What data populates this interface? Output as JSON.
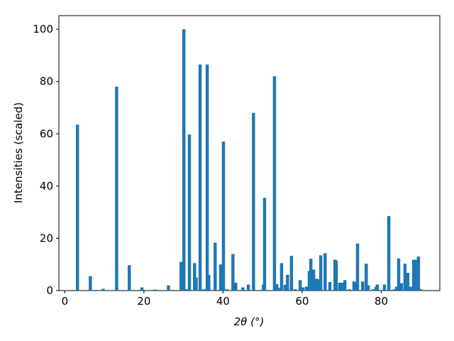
{
  "chart_data": {
    "type": "bar",
    "xlabel": "2θ (°)",
    "ylabel": "Intensities (scaled)",
    "color": "#1f77b4",
    "x": [
      3.2,
      6.45,
      9.7,
      13.1,
      16.3,
      19.5,
      22.8,
      26.2,
      29.4,
      30.1,
      30.8,
      31.5,
      32.8,
      33.2,
      34.2,
      35.1,
      36.0,
      36.4,
      38.0,
      39.4,
      40.1,
      40.9,
      42.5,
      43.2,
      45.0,
      46.4,
      47.7,
      50.2,
      50.5,
      53.0,
      53.6,
      54.1,
      54.8,
      55.7,
      56.3,
      57.3,
      58.2,
      59.5,
      60.2,
      61.1,
      61.8,
      62.2,
      62.9,
      63.6,
      64.3,
      64.7,
      65.8,
      67.0,
      68.3,
      68.6,
      69.5,
      70.1,
      70.8,
      71.9,
      73.1,
      73.7,
      74.0,
      75.3,
      76.2,
      76.7,
      78.0,
      78.7,
      79.0,
      80.8,
      81.9,
      83.3,
      83.9,
      84.4,
      85.1,
      86.0,
      86.7,
      87.3,
      87.6,
      88.2,
      88.9,
      89.4,
      90.0
    ],
    "values": [
      63.5,
      5.5,
      0.7,
      78,
      9.7,
      1.2,
      0.4,
      2,
      11,
      100,
      0.5,
      59.7,
      10.5,
      5,
      86.5,
      0.5,
      86.5,
      6,
      18.3,
      10,
      57,
      0.5,
      14,
      3,
      1.2,
      2.3,
      68,
      2.3,
      35.5,
      82,
      2.5,
      1,
      10.5,
      2.2,
      6,
      13.3,
      0.5,
      4,
      1.2,
      1.5,
      7.5,
      12.2,
      8,
      4.5,
      4.3,
      13.5,
      14.3,
      3.3,
      11.8,
      11.5,
      3,
      3,
      4,
      0.5,
      3.5,
      3,
      18,
      3.5,
      10.3,
      2,
      0.5,
      1.5,
      2.3,
      2.3,
      28.5,
      0.5,
      1.5,
      12.3,
      2.8,
      10.3,
      6.8,
      1.5,
      1.5,
      11.8,
      11.8,
      13,
      0.5
    ],
    "xlim": [
      -1.5,
      94.8
    ],
    "ylim": [
      0,
      105.2
    ],
    "xticks": [
      0,
      20,
      40,
      60,
      80
    ],
    "yticks": [
      0,
      20,
      40,
      60,
      80,
      100
    ]
  }
}
